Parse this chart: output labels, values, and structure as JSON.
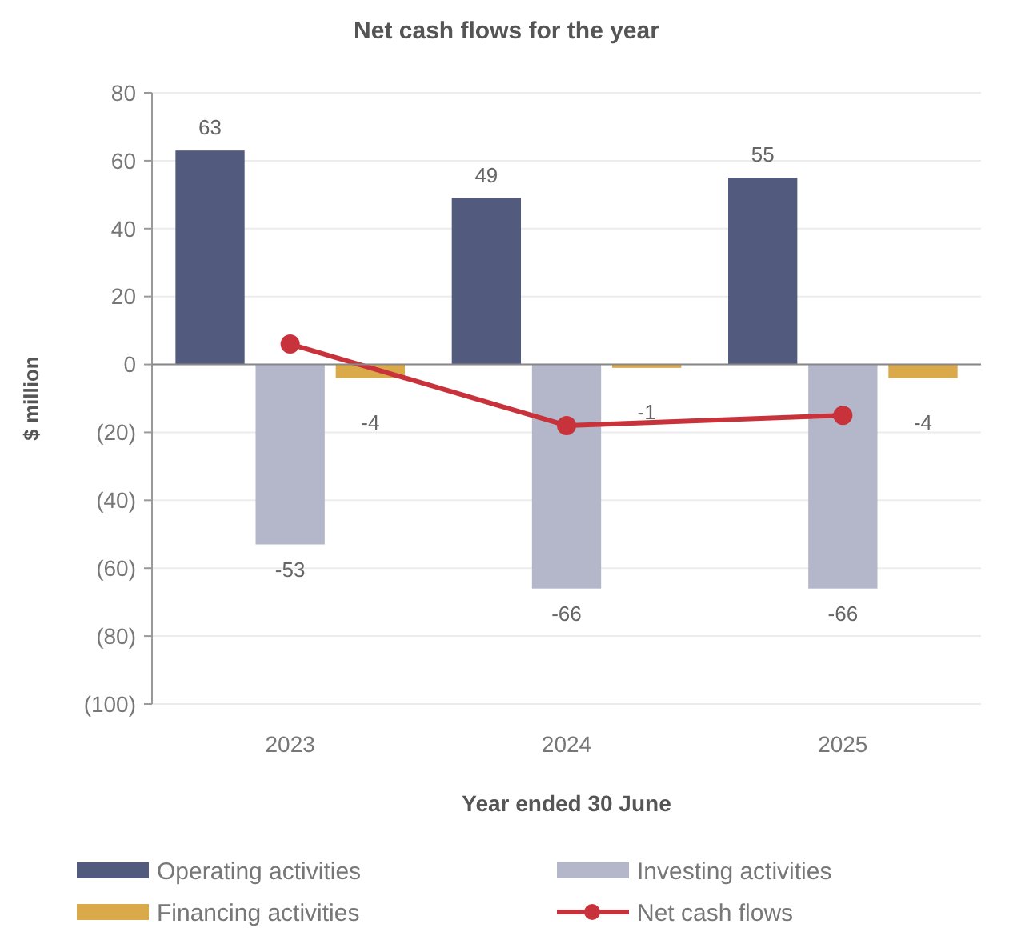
{
  "chart_data": {
    "type": "bar",
    "title": "Net cash flows for the year",
    "xlabel": "Year ended 30 June",
    "ylabel": "$ million",
    "categories": [
      "2023",
      "2024",
      "2025"
    ],
    "series": [
      {
        "name": "Operating activities",
        "color": "#525a7e",
        "values": [
          63,
          49,
          55
        ],
        "value_labels": [
          "63",
          "49",
          "55"
        ]
      },
      {
        "name": "Investing activities",
        "color": "#b3b7c9",
        "values": [
          -53,
          -66,
          -66
        ],
        "value_labels": [
          "-53",
          "-66",
          "-66"
        ]
      },
      {
        "name": "Financing activities",
        "color": "#d9a94a",
        "values": [
          -4,
          -1,
          -4
        ],
        "value_labels": [
          "-4",
          "-1",
          "-4"
        ]
      },
      {
        "name": "Net cash flows",
        "type": "line",
        "color": "#c8323a",
        "values": [
          6,
          -18,
          -15
        ]
      }
    ],
    "ylim": [
      -100,
      80
    ],
    "yticks": [
      {
        "value": -100,
        "label": "(100)"
      },
      {
        "value": -80,
        "label": "(80)"
      },
      {
        "value": -60,
        "label": "(60)"
      },
      {
        "value": -40,
        "label": "(40)"
      },
      {
        "value": -20,
        "label": "(20)"
      },
      0,
      20,
      40,
      60,
      80
    ],
    "grid": "y",
    "legend": "bottom",
    "marker": "circle",
    "line_style": "solid"
  }
}
